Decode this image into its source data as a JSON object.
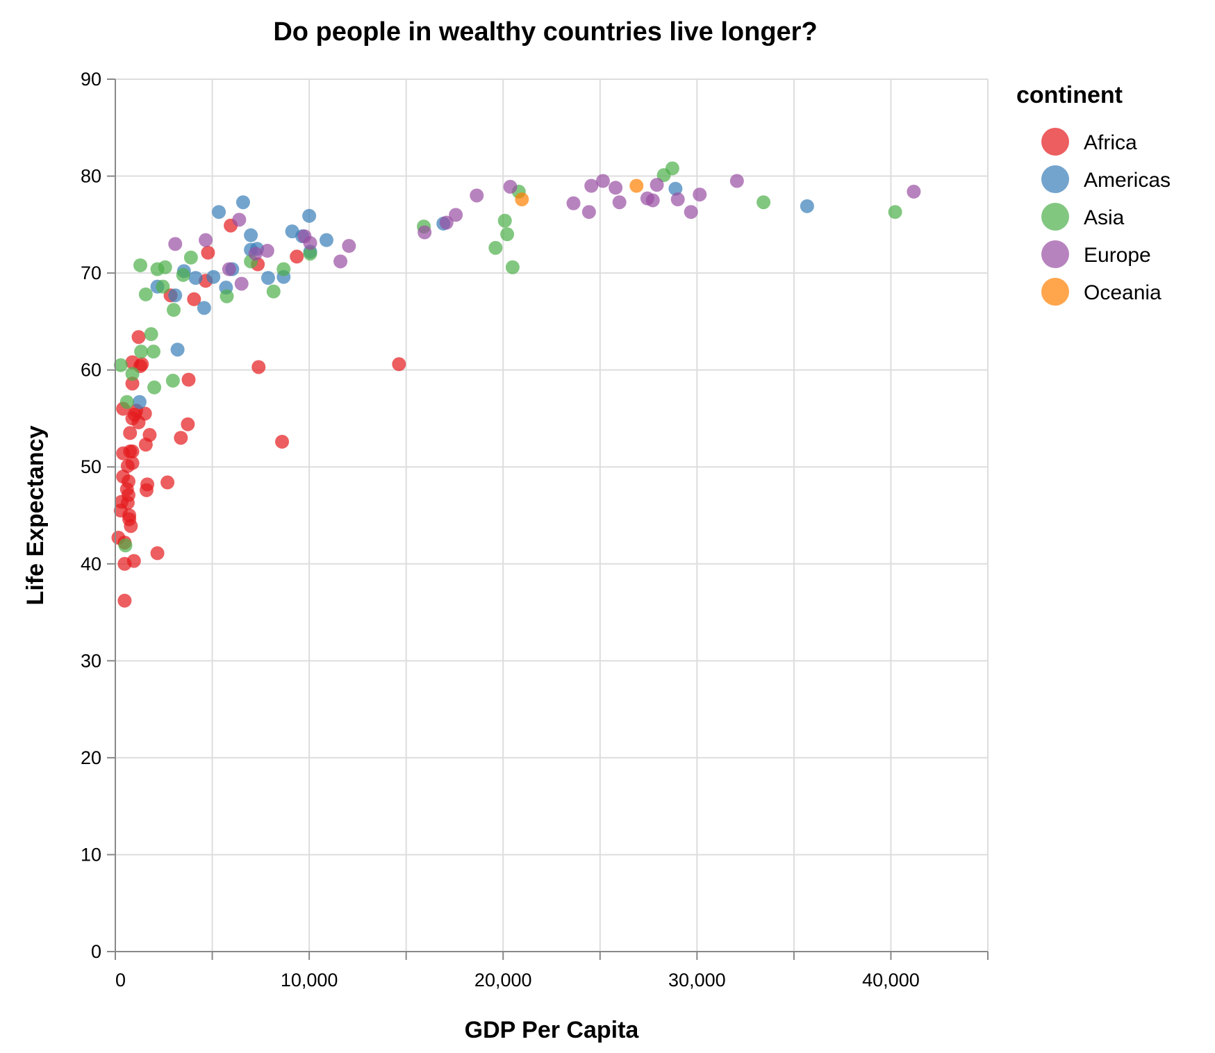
{
  "chart_data": {
    "type": "scatter",
    "title": "Do people in wealthy countries live longer?",
    "xlabel": "GDP Per Capita",
    "ylabel": "Life Expectancy",
    "xlim": [
      0,
      45000
    ],
    "ylim": [
      0,
      90
    ],
    "x_ticks": [
      "0",
      "10,000",
      "20,000",
      "30,000",
      "40,000"
    ],
    "x_tick_values": [
      0,
      10000,
      20000,
      30000,
      40000
    ],
    "y_ticks": [
      "0",
      "10",
      "20",
      "30",
      "40",
      "50",
      "60",
      "70",
      "80",
      "90"
    ],
    "y_tick_values": [
      0,
      10,
      20,
      30,
      40,
      50,
      60,
      70,
      80,
      90
    ],
    "grid": true,
    "legend": {
      "title": "continent",
      "placement": "right"
    },
    "series": [
      {
        "name": "Africa",
        "color": "#e41a1c",
        "points": [
          [
            160,
            42.7
          ],
          [
            280,
            45.5
          ],
          [
            320,
            46.4
          ],
          [
            400,
            49.0
          ],
          [
            400,
            51.4
          ],
          [
            400,
            56.0
          ],
          [
            480,
            40.0
          ],
          [
            480,
            36.2
          ],
          [
            480,
            42.2
          ],
          [
            600,
            47.7
          ],
          [
            640,
            50.1
          ],
          [
            640,
            46.3
          ],
          [
            680,
            47.1
          ],
          [
            680,
            48.5
          ],
          [
            720,
            45.0
          ],
          [
            720,
            44.6
          ],
          [
            760,
            53.5
          ],
          [
            760,
            51.6
          ],
          [
            800,
            43.9
          ],
          [
            880,
            50.4
          ],
          [
            880,
            51.6
          ],
          [
            880,
            55.0
          ],
          [
            880,
            58.6
          ],
          [
            880,
            60.8
          ],
          [
            960,
            40.3
          ],
          [
            1000,
            55.4
          ],
          [
            1080,
            55.8
          ],
          [
            1200,
            54.6
          ],
          [
            1200,
            63.4
          ],
          [
            1290,
            60.4
          ],
          [
            1370,
            60.6
          ],
          [
            1530,
            55.5
          ],
          [
            1570,
            52.3
          ],
          [
            1610,
            47.6
          ],
          [
            1650,
            48.2
          ],
          [
            1770,
            53.3
          ],
          [
            2170,
            41.1
          ],
          [
            2690,
            48.4
          ],
          [
            2850,
            67.7
          ],
          [
            3380,
            53.0
          ],
          [
            3740,
            54.4
          ],
          [
            3780,
            59.0
          ],
          [
            4060,
            67.3
          ],
          [
            4660,
            69.2
          ],
          [
            4780,
            72.1
          ],
          [
            5950,
            74.9
          ],
          [
            7390,
            60.3
          ],
          [
            7350,
            70.9
          ],
          [
            8600,
            52.6
          ],
          [
            9360,
            71.7
          ],
          [
            14630,
            60.6
          ]
        ]
      },
      {
        "name": "Americas",
        "color": "#377eb8",
        "points": [
          [
            1250,
            56.7
          ],
          [
            2170,
            68.6
          ],
          [
            3090,
            67.7
          ],
          [
            3210,
            62.1
          ],
          [
            3540,
            70.2
          ],
          [
            4140,
            69.5
          ],
          [
            4580,
            66.4
          ],
          [
            5060,
            69.6
          ],
          [
            5340,
            76.3
          ],
          [
            5710,
            68.5
          ],
          [
            6030,
            70.4
          ],
          [
            6590,
            77.3
          ],
          [
            6990,
            73.9
          ],
          [
            6990,
            72.4
          ],
          [
            7310,
            72.5
          ],
          [
            7880,
            69.5
          ],
          [
            8680,
            69.6
          ],
          [
            9120,
            74.3
          ],
          [
            9640,
            73.8
          ],
          [
            10000,
            75.9
          ],
          [
            10050,
            72.2
          ],
          [
            10890,
            73.4
          ],
          [
            16920,
            75.1
          ],
          [
            28890,
            78.7
          ],
          [
            35680,
            76.9
          ]
        ]
      },
      {
        "name": "Asia",
        "color": "#4daf4a",
        "points": [
          [
            280,
            60.5
          ],
          [
            520,
            41.9
          ],
          [
            600,
            56.7
          ],
          [
            880,
            59.6
          ],
          [
            1290,
            70.8
          ],
          [
            1330,
            61.9
          ],
          [
            1570,
            67.8
          ],
          [
            1850,
            63.7
          ],
          [
            1970,
            61.9
          ],
          [
            2010,
            58.2
          ],
          [
            2170,
            70.4
          ],
          [
            2450,
            68.6
          ],
          [
            2570,
            70.6
          ],
          [
            2970,
            58.9
          ],
          [
            3010,
            66.2
          ],
          [
            3500,
            69.8
          ],
          [
            3900,
            71.6
          ],
          [
            5750,
            67.6
          ],
          [
            6990,
            71.2
          ],
          [
            8160,
            68.1
          ],
          [
            8680,
            70.4
          ],
          [
            10050,
            72.0
          ],
          [
            15910,
            74.8
          ],
          [
            19610,
            72.6
          ],
          [
            20090,
            75.4
          ],
          [
            20210,
            74.0
          ],
          [
            20490,
            70.6
          ],
          [
            20810,
            78.4
          ],
          [
            28290,
            80.1
          ],
          [
            28730,
            80.8
          ],
          [
            33430,
            77.3
          ],
          [
            40220,
            76.3
          ]
        ]
      },
      {
        "name": "Europe",
        "color": "#984ea3",
        "points": [
          [
            3090,
            73.0
          ],
          [
            4660,
            73.4
          ],
          [
            5870,
            70.4
          ],
          [
            6390,
            75.5
          ],
          [
            6510,
            68.9
          ],
          [
            7230,
            72.0
          ],
          [
            7840,
            72.3
          ],
          [
            9760,
            73.8
          ],
          [
            10050,
            73.1
          ],
          [
            11610,
            71.2
          ],
          [
            12050,
            72.8
          ],
          [
            15950,
            74.2
          ],
          [
            17080,
            75.2
          ],
          [
            17560,
            76.0
          ],
          [
            18640,
            78.0
          ],
          [
            20370,
            78.9
          ],
          [
            23630,
            77.2
          ],
          [
            24430,
            76.3
          ],
          [
            24550,
            79.0
          ],
          [
            25150,
            79.5
          ],
          [
            25800,
            78.8
          ],
          [
            26000,
            77.3
          ],
          [
            27440,
            77.7
          ],
          [
            27720,
            77.5
          ],
          [
            27930,
            79.1
          ],
          [
            29010,
            77.6
          ],
          [
            29690,
            76.3
          ],
          [
            30140,
            78.1
          ],
          [
            32060,
            79.5
          ],
          [
            41180,
            78.4
          ]
        ]
      },
      {
        "name": "Oceania",
        "color": "#ff7f00",
        "points": [
          [
            20970,
            77.6
          ],
          [
            26880,
            79.0
          ]
        ]
      }
    ]
  }
}
